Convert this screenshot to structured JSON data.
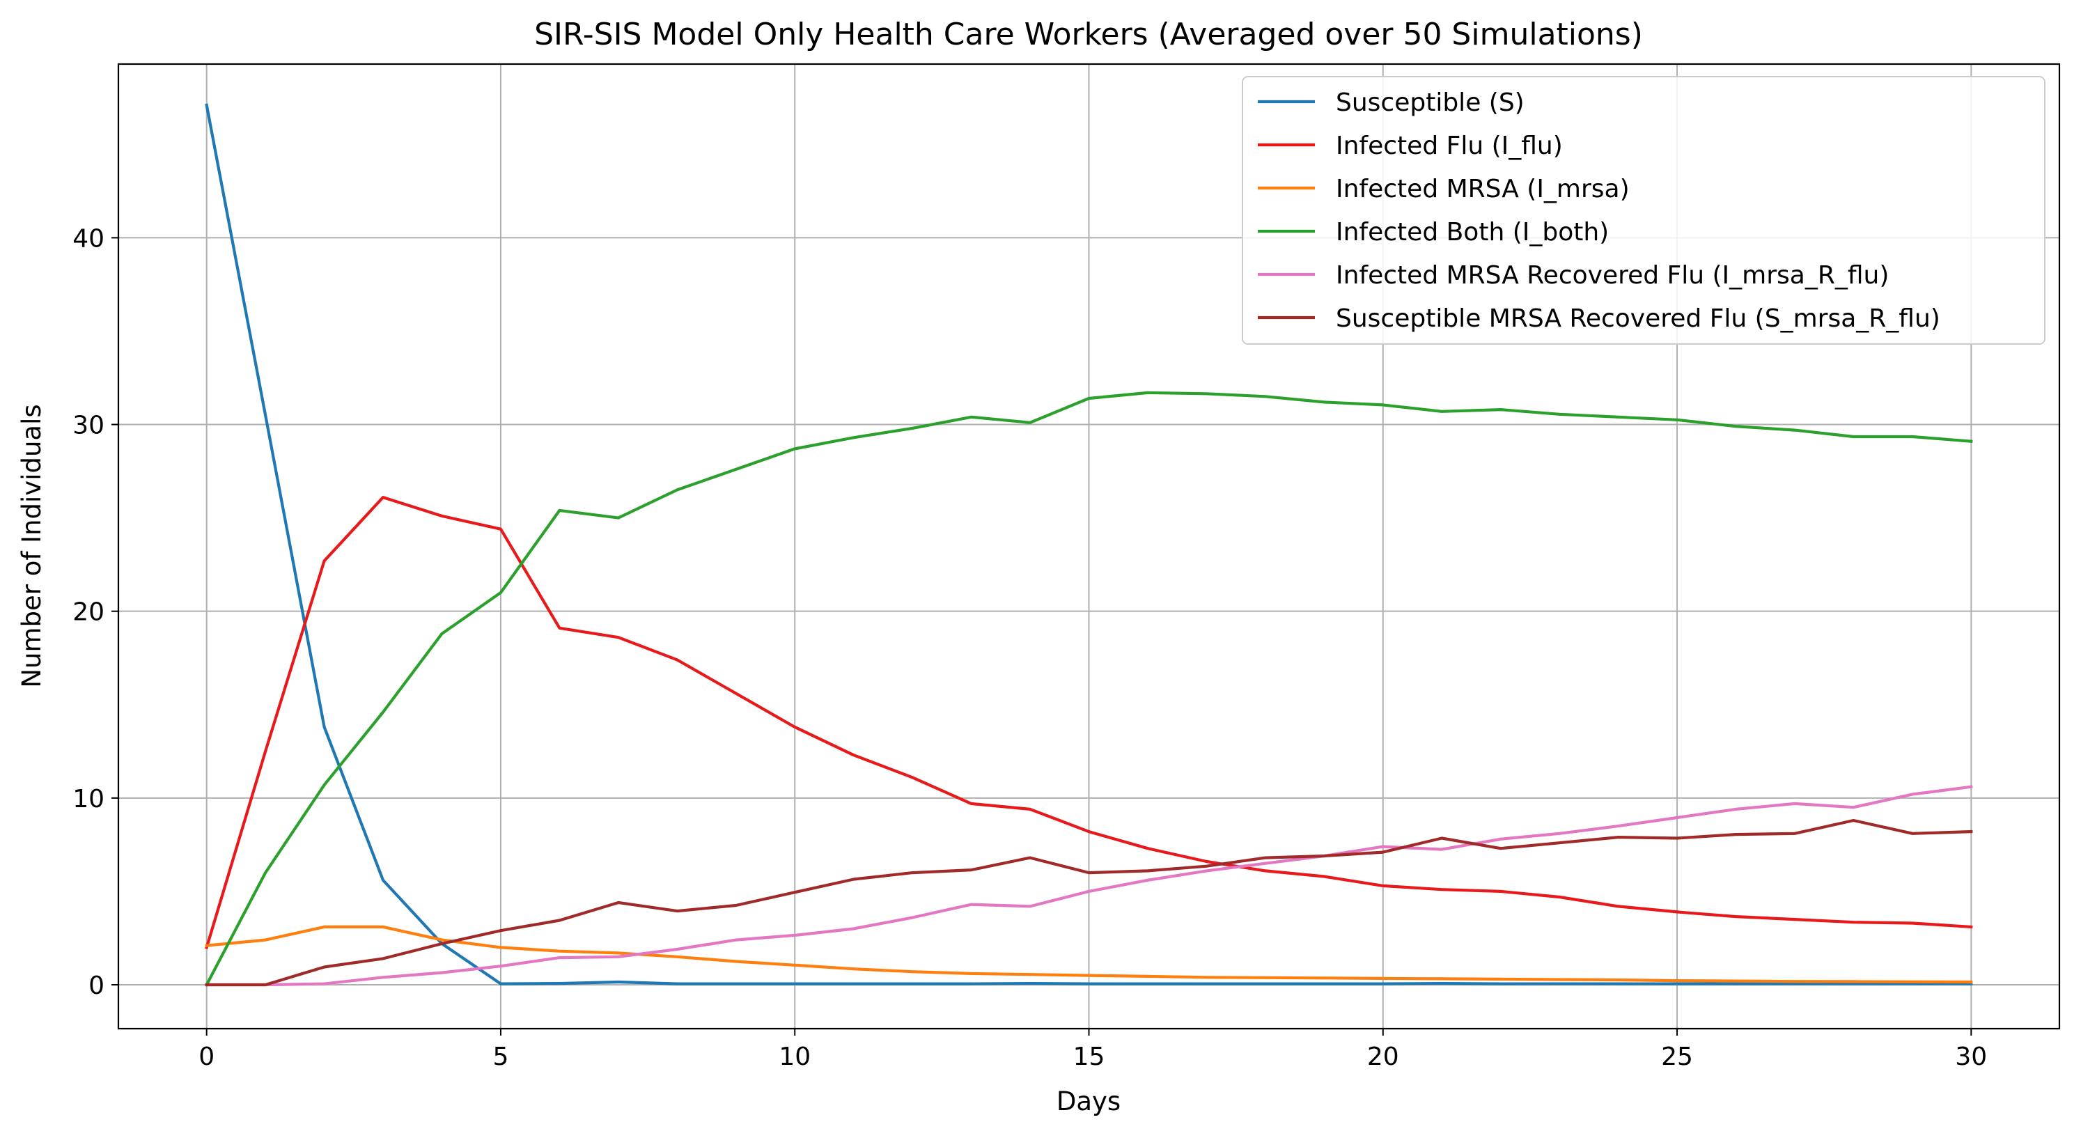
{
  "chart_data": {
    "type": "line",
    "title": "SIR-SIS Model Only Health Care Workers (Averaged over 50 Simulations)",
    "xlabel": "Days",
    "ylabel": "Number of Individuals",
    "xlim": [
      -1.5,
      31.5
    ],
    "ylim": [
      -2.35,
      49.3
    ],
    "xticks": [
      0,
      5,
      10,
      15,
      20,
      25,
      30
    ],
    "yticks": [
      0,
      10,
      20,
      30,
      40
    ],
    "grid": true,
    "legend_position": "top-right",
    "x": [
      0,
      1,
      2,
      3,
      4,
      5,
      6,
      7,
      8,
      9,
      10,
      11,
      12,
      13,
      14,
      15,
      16,
      17,
      18,
      19,
      20,
      21,
      22,
      23,
      24,
      25,
      26,
      27,
      28,
      29,
      30
    ],
    "series": [
      {
        "name": "Susceptible (S)",
        "color": "#1f77b4",
        "values": [
          47.1,
          30.5,
          13.8,
          5.6,
          2.2,
          0.05,
          0.07,
          0.15,
          0.05,
          0.05,
          0.05,
          0.05,
          0.05,
          0.05,
          0.07,
          0.05,
          0.05,
          0.05,
          0.05,
          0.05,
          0.05,
          0.07,
          0.05,
          0.05,
          0.05,
          0.05,
          0.05,
          0.05,
          0.05,
          0.05,
          0.05
        ]
      },
      {
        "name": "Infected Flu (I_flu)",
        "color": "#e8191a",
        "values": [
          2.0,
          12.5,
          22.7,
          26.1,
          25.1,
          24.4,
          19.1,
          18.6,
          17.4,
          15.6,
          13.8,
          12.3,
          11.1,
          9.7,
          9.4,
          8.2,
          7.3,
          6.6,
          6.1,
          5.8,
          5.3,
          5.1,
          5.0,
          4.7,
          4.2,
          3.9,
          3.65,
          3.5,
          3.35,
          3.3,
          3.1
        ]
      },
      {
        "name": "Infected MRSA (I_mrsa)",
        "color": "#ff7f0e",
        "values": [
          2.1,
          2.4,
          3.1,
          3.1,
          2.4,
          2.0,
          1.8,
          1.7,
          1.5,
          1.25,
          1.05,
          0.85,
          0.7,
          0.6,
          0.55,
          0.5,
          0.45,
          0.4,
          0.38,
          0.36,
          0.34,
          0.32,
          0.3,
          0.28,
          0.26,
          0.22,
          0.2,
          0.18,
          0.17,
          0.16,
          0.15
        ]
      },
      {
        "name": "Infected Both (I_both)",
        "color": "#2ca02c",
        "values": [
          0.0,
          6.0,
          10.7,
          14.6,
          18.8,
          21.0,
          25.4,
          25.0,
          26.5,
          27.6,
          28.7,
          29.3,
          29.8,
          30.4,
          30.1,
          31.4,
          31.7,
          31.65,
          31.5,
          31.2,
          31.05,
          30.7,
          30.8,
          30.55,
          30.4,
          30.25,
          29.9,
          29.7,
          29.35,
          29.35,
          29.1
        ]
      },
      {
        "name": "Infected MRSA Recovered Flu (I_mrsa_R_flu)",
        "color": "#e377c2",
        "values": [
          0.0,
          0.0,
          0.05,
          0.4,
          0.65,
          1.0,
          1.45,
          1.5,
          1.9,
          2.4,
          2.65,
          3.0,
          3.6,
          4.3,
          4.2,
          5.0,
          5.6,
          6.1,
          6.5,
          6.9,
          7.4,
          7.25,
          7.8,
          8.1,
          8.5,
          8.95,
          9.4,
          9.7,
          9.5,
          10.2,
          10.6
        ]
      },
      {
        "name": "Susceptible MRSA Recovered Flu (S_mrsa_R_flu)",
        "color": "#a02a2a",
        "values": [
          0.0,
          0.0,
          0.95,
          1.4,
          2.2,
          2.9,
          3.45,
          4.4,
          3.95,
          4.25,
          4.95,
          5.65,
          6.0,
          6.15,
          6.8,
          6.0,
          6.1,
          6.35,
          6.8,
          6.9,
          7.1,
          7.85,
          7.3,
          7.6,
          7.9,
          7.85,
          8.05,
          8.1,
          8.8,
          8.1,
          8.2
        ]
      }
    ]
  }
}
